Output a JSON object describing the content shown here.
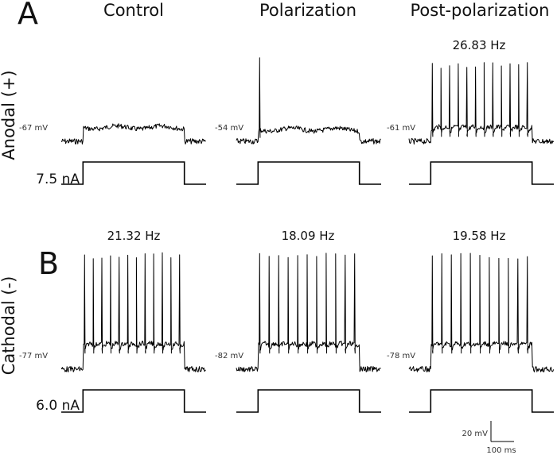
{
  "figure": {
    "panel_letters": [
      "A",
      "B"
    ],
    "columns": [
      "Control",
      "Polarization",
      "Post-polarization"
    ],
    "rows": [
      {
        "label": "Anodal (+)",
        "current": "7.5 nA"
      },
      {
        "label": "Cathodal (-)",
        "current": "6.0 nA"
      }
    ],
    "scale_bar": {
      "voltage": "20 mV",
      "time": "100 ms"
    }
  },
  "chart_data": {
    "type": "line",
    "description_units": {
      "voltage": "mV",
      "time": "ms",
      "current": "nA"
    },
    "panels": [
      {
        "row": "Anodal (+)",
        "column": "Control",
        "resting_potential": "-67 mV",
        "rest_mV": -67,
        "plateau_mV": -60,
        "firing_rate": "",
        "spike_count": 0,
        "step_current_nA": 7.5
      },
      {
        "row": "Anodal (+)",
        "column": "Polarization",
        "resting_potential": "-54 mV",
        "rest_mV": -54,
        "plateau_mV": -49,
        "firing_rate": "",
        "spike_count": 1,
        "step_current_nA": 7.5
      },
      {
        "row": "Anodal (+)",
        "column": "Post-polarization",
        "resting_potential": "-61 mV",
        "rest_mV": -61,
        "plateau_mV": -55,
        "firing_rate": "26.83 Hz",
        "spike_count": 12,
        "step_current_nA": 7.5
      },
      {
        "row": "Cathodal (-)",
        "column": "Control",
        "resting_potential": "-77 mV",
        "rest_mV": -77,
        "plateau_mV": -65,
        "firing_rate": "21.32 Hz",
        "spike_count": 12,
        "step_current_nA": 6.0
      },
      {
        "row": "Cathodal (-)",
        "column": "Polarization",
        "resting_potential": "-82 mV",
        "rest_mV": -82,
        "plateau_mV": -70,
        "firing_rate": "18.09 Hz",
        "spike_count": 11,
        "step_current_nA": 6.0
      },
      {
        "row": "Cathodal (-)",
        "column": "Post-polarization",
        "resting_potential": "-78 mV",
        "rest_mV": -78,
        "plateau_mV": -66,
        "firing_rate": "19.58 Hz",
        "spike_count": 11,
        "step_current_nA": 6.0
      }
    ]
  }
}
